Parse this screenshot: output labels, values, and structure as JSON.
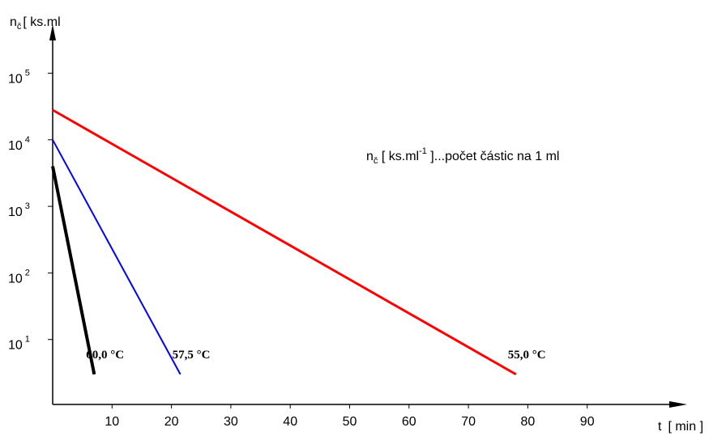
{
  "chart_data": {
    "type": "line",
    "y_axis_title_symbol": "n",
    "y_axis_title_subscript": "č",
    "y_axis_title_units": "[ ks.ml",
    "x_axis_title_symbol": "t",
    "x_axis_title_units": "[ min ]",
    "y_scale": "log",
    "xlim": [
      0,
      90
    ],
    "ylim_log10": [
      0,
      5.5
    ],
    "x_ticks": [
      {
        "value": 10,
        "label": "10"
      },
      {
        "value": 20,
        "label": "20"
      },
      {
        "value": 30,
        "label": "30"
      },
      {
        "value": 40,
        "label": "40"
      },
      {
        "value": 50,
        "label": "50"
      },
      {
        "value": 60,
        "label": "60"
      },
      {
        "value": 70,
        "label": "70"
      },
      {
        "value": 80,
        "label": "80"
      },
      {
        "value": 90,
        "label": "90"
      }
    ],
    "y_ticks": [
      {
        "value": 10,
        "base": "10",
        "exponent": "1"
      },
      {
        "value": 100,
        "base": "10",
        "exponent": "2"
      },
      {
        "value": 1000,
        "base": "10",
        "exponent": "3"
      },
      {
        "value": 10000,
        "base": "10",
        "exponent": "4"
      },
      {
        "value": 100000,
        "base": "10",
        "exponent": "5"
      }
    ],
    "series": [
      {
        "name": "60,0 °C",
        "color": "#000000",
        "x": [
          0,
          7
        ],
        "y": [
          4000,
          3
        ]
      },
      {
        "name": "57,5 °C",
        "color": "#0000ff",
        "x": [
          0,
          21.5
        ],
        "y": [
          10000,
          3
        ]
      },
      {
        "name": "55,0 °C",
        "color": "#ff0000",
        "x": [
          0,
          78
        ],
        "y": [
          28000,
          3
        ]
      }
    ],
    "annotation": {
      "symbol": "n",
      "subscript": "č",
      "units_pre": " [ ks.ml",
      "units_exp": "-1",
      "text_post": " ]...počet částic na 1 ml"
    },
    "grid": false
  }
}
